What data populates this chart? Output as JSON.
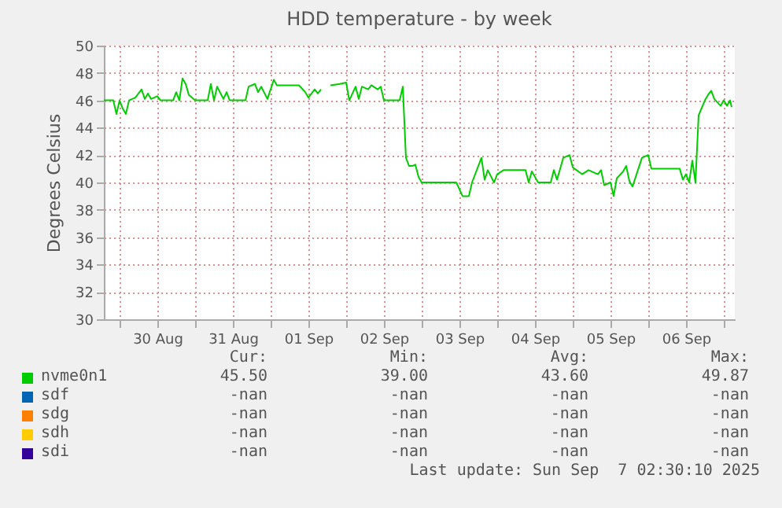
{
  "chart_data": {
    "type": "line",
    "title": "HDD temperature - by week",
    "ylabel": "Degrees Celsius",
    "xlim": [
      "2025-08-29T19:00",
      "2025-09-07T03:30"
    ],
    "xticks": [
      {
        "value": "2025-08-30T00:00",
        "label": null
      },
      {
        "value": "2025-08-30T12:00",
        "label": "30 Aug"
      },
      {
        "value": "2025-08-31T00:00",
        "label": null
      },
      {
        "value": "2025-08-31T12:00",
        "label": "31 Aug"
      },
      {
        "value": "2025-09-01T00:00",
        "label": null
      },
      {
        "value": "2025-09-01T12:00",
        "label": "01 Sep"
      },
      {
        "value": "2025-09-02T00:00",
        "label": null
      },
      {
        "value": "2025-09-02T12:00",
        "label": "02 Sep"
      },
      {
        "value": "2025-09-03T00:00",
        "label": null
      },
      {
        "value": "2025-09-03T12:00",
        "label": "03 Sep"
      },
      {
        "value": "2025-09-04T00:00",
        "label": null
      },
      {
        "value": "2025-09-04T12:00",
        "label": "04 Sep"
      },
      {
        "value": "2025-09-05T00:00",
        "label": null
      },
      {
        "value": "2025-09-05T12:00",
        "label": "05 Sep"
      },
      {
        "value": "2025-09-06T00:00",
        "label": null
      },
      {
        "value": "2025-09-06T12:00",
        "label": "06 Sep"
      },
      {
        "value": "2025-09-07T00:00",
        "label": null
      }
    ],
    "ylim": [
      30,
      50
    ],
    "yticks": [
      30,
      32,
      34,
      36,
      38,
      40,
      42,
      44,
      46,
      48,
      50
    ],
    "grid": true,
    "legend": "bottom",
    "x": [
      "2025-08-29T19:00",
      "2025-08-29T22:00",
      "2025-08-29T23:00",
      "2025-08-30T00:00",
      "2025-08-30T01:00",
      "2025-08-30T02:00",
      "2025-08-30T03:00",
      "2025-08-30T05:00",
      "2025-08-30T07:00",
      "2025-08-30T08:00",
      "2025-08-30T09:00",
      "2025-08-30T10:00",
      "2025-08-30T12:00",
      "2025-08-30T13:00",
      "2025-08-30T17:00",
      "2025-08-30T18:00",
      "2025-08-30T19:00",
      "2025-08-30T20:00",
      "2025-08-30T21:00",
      "2025-08-30T22:00",
      "2025-08-31T00:00",
      "2025-08-31T04:00",
      "2025-08-31T05:00",
      "2025-08-31T06:00",
      "2025-08-31T07:00",
      "2025-08-31T09:00",
      "2025-08-31T10:00",
      "2025-08-31T11:00",
      "2025-08-31T16:00",
      "2025-08-31T17:00",
      "2025-08-31T19:00",
      "2025-08-31T20:00",
      "2025-08-31T21:00",
      "2025-08-31T23:00",
      "2025-09-01T00:00",
      "2025-09-01T01:00",
      "2025-09-01T02:00",
      "2025-09-01T09:00",
      "2025-09-01T11:00",
      "2025-09-01T12:00",
      "2025-09-01T14:00",
      "2025-09-01T15:00",
      "2025-09-01T16:00",
      "2025-09-01T18:00",
      "2025-09-01T19:00",
      "2025-09-01T22:00",
      "2025-09-02T00:00",
      "2025-09-02T01:00",
      "2025-09-02T03:00",
      "2025-09-02T04:00",
      "2025-09-02T05:00",
      "2025-09-02T07:00",
      "2025-09-02T08:00",
      "2025-09-02T10:00",
      "2025-09-02T11:00",
      "2025-09-02T12:00",
      "2025-09-02T17:00",
      "2025-09-02T18:00",
      "2025-09-02T19:00",
      "2025-09-02T20:00",
      "2025-09-02T21:00",
      "2025-09-02T22:00",
      "2025-09-02T23:00",
      "2025-09-03T00:00",
      "2025-09-03T01:00",
      "2025-09-03T11:00",
      "2025-09-03T13:00",
      "2025-09-03T15:00",
      "2025-09-03T16:00",
      "2025-09-03T19:00",
      "2025-09-03T20:00",
      "2025-09-03T21:00",
      "2025-09-03T23:00",
      "2025-09-04T00:00",
      "2025-09-04T02:00",
      "2025-09-04T09:00",
      "2025-09-04T10:00",
      "2025-09-04T11:00",
      "2025-09-04T13:00",
      "2025-09-04T17:00",
      "2025-09-04T18:00",
      "2025-09-04T19:00",
      "2025-09-04T21:00",
      "2025-09-04T23:00",
      "2025-09-05T00:00",
      "2025-09-05T03:00",
      "2025-09-05T05:00",
      "2025-09-05T08:00",
      "2025-09-05T09:00",
      "2025-09-05T10:00",
      "2025-09-05T12:00",
      "2025-09-05T13:00",
      "2025-09-05T14:00",
      "2025-09-05T16:00",
      "2025-09-05T17:00",
      "2025-09-05T18:00",
      "2025-09-05T19:00",
      "2025-09-05T21:00",
      "2025-09-05T22:00",
      "2025-09-06T00:00",
      "2025-09-06T01:00",
      "2025-09-06T10:00",
      "2025-09-06T11:00",
      "2025-09-06T12:00",
      "2025-09-06T13:00",
      "2025-09-06T14:00",
      "2025-09-06T15:00",
      "2025-09-06T16:00",
      "2025-09-06T18:00",
      "2025-09-06T19:00",
      "2025-09-06T20:00",
      "2025-09-06T21:00",
      "2025-09-06T23:00",
      "2025-09-07T00:00",
      "2025-09-07T01:00",
      "2025-09-07T02:00",
      "2025-09-07T02:30"
    ],
    "series": [
      {
        "name": "nvme0n1",
        "color": "#00cc00",
        "values": [
          46,
          46,
          45,
          46,
          45.4,
          45,
          46,
          46.2,
          46.8,
          46.1,
          46.5,
          46.1,
          46.3,
          46,
          46,
          46.6,
          46,
          47.6,
          47.2,
          46.4,
          46,
          46,
          47.2,
          46,
          47,
          46.1,
          46.6,
          46,
          46,
          47,
          47.2,
          46.6,
          47,
          46.1,
          46.8,
          47.5,
          47.1,
          47.1,
          46.6,
          46.2,
          46.8,
          46.5,
          46.8,
          null,
          47.1,
          47.2,
          47.3,
          46,
          47,
          46.1,
          47,
          46.8,
          47.1,
          46.8,
          47,
          46,
          46,
          47,
          41.8,
          41.2,
          41.2,
          41.3,
          40.4,
          40,
          40,
          40,
          39,
          39,
          40,
          41.8,
          40.2,
          40.9,
          40,
          40.6,
          40.9,
          40.9,
          40,
          40.8,
          40,
          40,
          40.9,
          40.2,
          41.8,
          42,
          41.1,
          40.6,
          40.9,
          40.6,
          40.9,
          39.8,
          40,
          39,
          40.3,
          40.8,
          41.2,
          40.1,
          39.7,
          41.1,
          41.8,
          42,
          41,
          41,
          40.2,
          40.6,
          40,
          41.6,
          40,
          44.9,
          46,
          46.4,
          46.7,
          46.1,
          45.6,
          46,
          45.6,
          46,
          45.5
        ]
      },
      {
        "name": "sdf",
        "color": "#0066b3",
        "values": [
          null,
          null,
          null,
          null,
          null,
          null,
          null,
          null,
          null,
          null,
          null,
          null,
          null,
          null,
          null,
          null,
          null,
          null,
          null,
          null,
          null,
          null,
          null,
          null,
          null,
          null,
          null,
          null,
          null,
          null,
          null,
          null,
          null,
          null,
          null,
          null,
          null,
          null,
          null,
          null,
          null,
          null,
          null,
          null,
          null,
          null,
          null,
          null,
          null,
          null,
          null,
          null,
          null,
          null,
          null,
          null,
          null,
          null,
          null,
          null,
          null,
          null,
          null,
          null,
          null,
          null,
          null,
          null,
          null,
          null,
          null,
          null,
          null,
          null,
          null,
          null,
          null,
          null,
          null,
          null,
          null,
          null,
          null,
          null,
          null,
          null,
          null,
          null,
          null,
          null,
          null,
          null,
          null,
          null,
          null,
          null,
          null,
          null,
          null,
          null,
          null,
          null,
          null,
          null,
          null,
          null,
          null,
          null,
          null,
          null,
          null,
          null,
          null,
          null,
          null,
          null,
          null
        ]
      },
      {
        "name": "sdg",
        "color": "#ff8000",
        "values": [
          null,
          null,
          null,
          null,
          null,
          null,
          null,
          null,
          null,
          null,
          null,
          null,
          null,
          null,
          null,
          null,
          null,
          null,
          null,
          null,
          null,
          null,
          null,
          null,
          null,
          null,
          null,
          null,
          null,
          null,
          null,
          null,
          null,
          null,
          null,
          null,
          null,
          null,
          null,
          null,
          null,
          null,
          null,
          null,
          null,
          null,
          null,
          null,
          null,
          null,
          null,
          null,
          null,
          null,
          null,
          null,
          null,
          null,
          null,
          null,
          null,
          null,
          null,
          null,
          null,
          null,
          null,
          null,
          null,
          null,
          null,
          null,
          null,
          null,
          null,
          null,
          null,
          null,
          null,
          null,
          null,
          null,
          null,
          null,
          null,
          null,
          null,
          null,
          null,
          null,
          null,
          null,
          null,
          null,
          null,
          null,
          null,
          null,
          null,
          null,
          null,
          null,
          null,
          null,
          null,
          null,
          null,
          null,
          null,
          null,
          null,
          null,
          null,
          null,
          null,
          null,
          null
        ]
      },
      {
        "name": "sdh",
        "color": "#ffcc00",
        "values": [
          null,
          null,
          null,
          null,
          null,
          null,
          null,
          null,
          null,
          null,
          null,
          null,
          null,
          null,
          null,
          null,
          null,
          null,
          null,
          null,
          null,
          null,
          null,
          null,
          null,
          null,
          null,
          null,
          null,
          null,
          null,
          null,
          null,
          null,
          null,
          null,
          null,
          null,
          null,
          null,
          null,
          null,
          null,
          null,
          null,
          null,
          null,
          null,
          null,
          null,
          null,
          null,
          null,
          null,
          null,
          null,
          null,
          null,
          null,
          null,
          null,
          null,
          null,
          null,
          null,
          null,
          null,
          null,
          null,
          null,
          null,
          null,
          null,
          null,
          null,
          null,
          null,
          null,
          null,
          null,
          null,
          null,
          null,
          null,
          null,
          null,
          null,
          null,
          null,
          null,
          null,
          null,
          null,
          null,
          null,
          null,
          null,
          null,
          null,
          null,
          null,
          null,
          null,
          null,
          null,
          null,
          null,
          null,
          null,
          null,
          null,
          null,
          null,
          null,
          null,
          null,
          null
        ]
      },
      {
        "name": "sdi",
        "color": "#330099",
        "values": [
          null,
          null,
          null,
          null,
          null,
          null,
          null,
          null,
          null,
          null,
          null,
          null,
          null,
          null,
          null,
          null,
          null,
          null,
          null,
          null,
          null,
          null,
          null,
          null,
          null,
          null,
          null,
          null,
          null,
          null,
          null,
          null,
          null,
          null,
          null,
          null,
          null,
          null,
          null,
          null,
          null,
          null,
          null,
          null,
          null,
          null,
          null,
          null,
          null,
          null,
          null,
          null,
          null,
          null,
          null,
          null,
          null,
          null,
          null,
          null,
          null,
          null,
          null,
          null,
          null,
          null,
          null,
          null,
          null,
          null,
          null,
          null,
          null,
          null,
          null,
          null,
          null,
          null,
          null,
          null,
          null,
          null,
          null,
          null,
          null,
          null,
          null,
          null,
          null,
          null,
          null,
          null,
          null,
          null,
          null,
          null,
          null,
          null,
          null,
          null,
          null,
          null,
          null,
          null,
          null,
          null,
          null,
          null,
          null,
          null,
          null,
          null,
          null,
          null,
          null,
          null,
          null
        ]
      }
    ],
    "annotations": [
      "Cur:",
      "Min:",
      "Avg:",
      "Max:",
      "45.50",
      "39.00",
      "43.60",
      "49.87",
      "-nan",
      "-nan",
      "-nan",
      "-nan",
      "-nan",
      "-nan",
      "-nan",
      "-nan",
      "-nan",
      "-nan",
      "-nan",
      "-nan",
      "-nan",
      "-nan",
      "-nan",
      "-nan",
      "Last update: Sun Sep  7 02:30:10 2025"
    ]
  }
}
